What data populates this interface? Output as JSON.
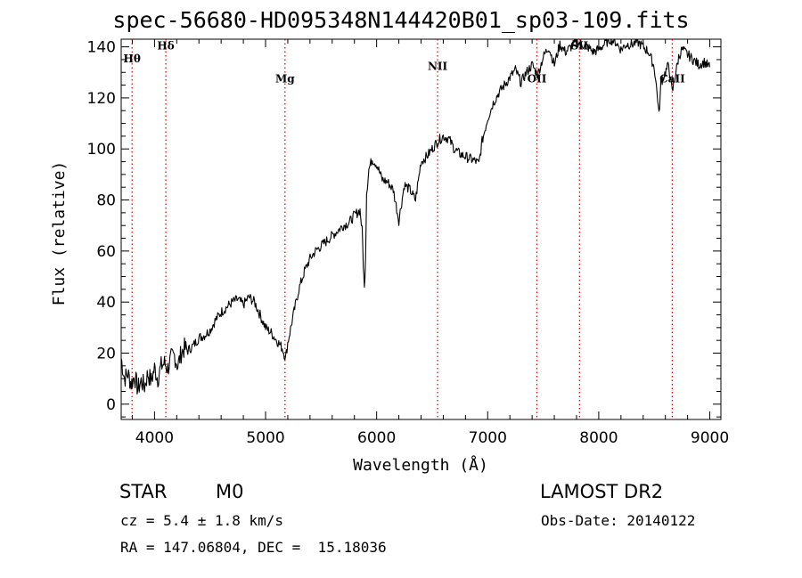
{
  "chart_data": {
    "type": "line",
    "title": "spec-56680-HD095348N144420B01_sp03-109.fits",
    "xlabel": "Wavelength (Å)",
    "ylabel": "Flux (relative)",
    "xlim": [
      3700,
      9100
    ],
    "ylim": [
      -6,
      143
    ],
    "xticks": [
      4000,
      5000,
      6000,
      7000,
      8000,
      9000
    ],
    "yticks": [
      0,
      20,
      40,
      60,
      80,
      100,
      120,
      140
    ],
    "grid": false,
    "series": [
      {
        "name": "spectrum",
        "color": "#000000",
        "x": [
          3700,
          3730,
          3760,
          3790,
          3820,
          3850,
          3880,
          3910,
          3940,
          3970,
          4000,
          4030,
          4060,
          4090,
          4120,
          4150,
          4180,
          4210,
          4240,
          4270,
          4300,
          4350,
          4400,
          4450,
          4500,
          4550,
          4600,
          4650,
          4700,
          4750,
          4800,
          4850,
          4900,
          4950,
          5000,
          5050,
          5100,
          5150,
          5180,
          5200,
          5250,
          5300,
          5350,
          5400,
          5450,
          5500,
          5550,
          5600,
          5650,
          5700,
          5750,
          5800,
          5850,
          5870,
          5880,
          5890,
          5900,
          5910,
          5930,
          5960,
          6000,
          6050,
          6100,
          6150,
          6200,
          6250,
          6300,
          6350,
          6400,
          6450,
          6500,
          6550,
          6600,
          6650,
          6700,
          6750,
          6800,
          6850,
          6900,
          6920,
          6950,
          7000,
          7050,
          7100,
          7150,
          7200,
          7250,
          7300,
          7350,
          7400,
          7450,
          7500,
          7550,
          7600,
          7650,
          7700,
          7750,
          7800,
          7850,
          7900,
          7950,
          8000,
          8050,
          8100,
          8150,
          8200,
          8250,
          8300,
          8350,
          8400,
          8450,
          8500,
          8530,
          8542,
          8560,
          8600,
          8630,
          8662,
          8690,
          8720,
          8750,
          8800,
          8850,
          8900,
          8950,
          9000
        ],
        "y": [
          18,
          10,
          12,
          8,
          11,
          6,
          9,
          7,
          12,
          9,
          14,
          10,
          15,
          16,
          14,
          18,
          19,
          15,
          20,
          22,
          21,
          23,
          26,
          27,
          29,
          33,
          36,
          38,
          40,
          41,
          39,
          42,
          40,
          35,
          30,
          28,
          25,
          22,
          18,
          24,
          35,
          45,
          52,
          57,
          60,
          62,
          64,
          66,
          68,
          70,
          71,
          74,
          76,
          68,
          55,
          45,
          58,
          83,
          92,
          96,
          94,
          88,
          87,
          84,
          72,
          86,
          84,
          80,
          95,
          97,
          100,
          103,
          105,
          104,
          100,
          98,
          97,
          96,
          95,
          94,
          103,
          112,
          118,
          122,
          125,
          128,
          131,
          126,
          130,
          133,
          129,
          136,
          140,
          133,
          141,
          138,
          140,
          142,
          141,
          140,
          138,
          139,
          141,
          143,
          142,
          139,
          141,
          141,
          142,
          140,
          138,
          132,
          120,
          113,
          126,
          130,
          133,
          122,
          129,
          136,
          139,
          137,
          135,
          133,
          134,
          132
        ],
        "values_note": "approximate trace read off the plotted spectrum"
      }
    ],
    "lines": [
      {
        "label": "Hθ",
        "x": 3798,
        "label_y": 134
      },
      {
        "label": "Hδ",
        "x": 4102,
        "label_y": 139
      },
      {
        "label": "Mg",
        "x": 5175,
        "label_y": 126
      },
      {
        "label": "NII",
        "x": 6549,
        "label_y": 131
      },
      {
        "label": "OII",
        "x": 7443,
        "label_y": 126
      },
      {
        "label": "SII",
        "x": 7827,
        "label_y": 139
      },
      {
        "label": "CaII",
        "x": 8662,
        "label_y": 126
      }
    ],
    "line_color": "#cc0000"
  },
  "info": {
    "class": "STAR",
    "subclass": "M0",
    "survey": "LAMOST DR2",
    "cz": "cz = 5.4 ± 1.8 km/s",
    "coords": "RA = 147.06804, DEC =  15.18036",
    "obs_date": "Obs-Date: 20140122"
  }
}
